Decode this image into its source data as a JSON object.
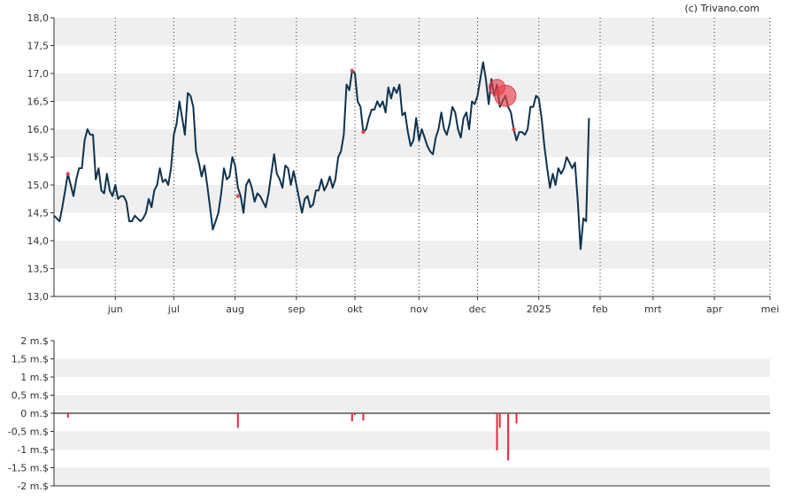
{
  "copyright": "(c) Trivano.com",
  "colors": {
    "price_line": "#0d3350",
    "band": "#efefef",
    "marker": "#e8404a",
    "volume_bar": "#e02a3a",
    "axis": "#333333",
    "grid_v": "#333333"
  },
  "chart_data": [
    {
      "type": "line",
      "name": "price",
      "ylim": [
        13.0,
        18.0
      ],
      "y_ticks": [
        13.0,
        13.5,
        14.0,
        14.5,
        15.0,
        15.5,
        16.0,
        16.5,
        17.0,
        17.5,
        18.0
      ],
      "y_tick_labels": [
        "13,0",
        "13,5",
        "14,0",
        "14,5",
        "15,0",
        "15,5",
        "16,0",
        "16,5",
        "17,0",
        "17,5",
        "18,0"
      ],
      "x_ticks": [
        {
          "label": "jun",
          "x": 22
        },
        {
          "label": "jul",
          "x": 43
        },
        {
          "label": "aug",
          "x": 65
        },
        {
          "label": "sep",
          "x": 87
        },
        {
          "label": "okt",
          "x": 108
        },
        {
          "label": "nov",
          "x": 131
        },
        {
          "label": "dec",
          "x": 152
        },
        {
          "label": "2025",
          "x": 174
        },
        {
          "label": "feb",
          "x": 196
        },
        {
          "label": "mrt",
          "x": 215
        },
        {
          "label": "apr",
          "x": 237
        },
        {
          "label": "mei",
          "x": 257
        }
      ],
      "xlim": [
        0,
        257
      ],
      "points": [
        [
          0,
          14.45
        ],
        [
          1,
          14.4
        ],
        [
          2,
          14.35
        ],
        [
          3,
          14.6
        ],
        [
          4,
          14.9
        ],
        [
          5,
          15.2
        ],
        [
          6,
          15.0
        ],
        [
          7,
          14.8
        ],
        [
          8,
          15.1
        ],
        [
          9,
          15.3
        ],
        [
          10,
          15.3
        ],
        [
          11,
          15.8
        ],
        [
          12,
          16.0
        ],
        [
          13,
          15.9
        ],
        [
          14,
          15.9
        ],
        [
          15,
          15.1
        ],
        [
          16,
          15.3
        ],
        [
          17,
          14.9
        ],
        [
          18,
          14.85
        ],
        [
          19,
          15.2
        ],
        [
          20,
          14.9
        ],
        [
          21,
          14.8
        ],
        [
          22,
          15.0
        ],
        [
          23,
          14.75
        ],
        [
          24,
          14.8
        ],
        [
          25,
          14.8
        ],
        [
          26,
          14.7
        ],
        [
          27,
          14.35
        ],
        [
          28,
          14.35
        ],
        [
          29,
          14.45
        ],
        [
          30,
          14.4
        ],
        [
          31,
          14.35
        ],
        [
          32,
          14.4
        ],
        [
          33,
          14.5
        ],
        [
          34,
          14.75
        ],
        [
          35,
          14.6
        ],
        [
          36,
          14.9
        ],
        [
          37,
          15.0
        ],
        [
          38,
          15.3
        ],
        [
          39,
          15.05
        ],
        [
          40,
          15.1
        ],
        [
          41,
          15.0
        ],
        [
          42,
          15.3
        ],
        [
          43,
          15.9
        ],
        [
          44,
          16.1
        ],
        [
          45,
          16.5
        ],
        [
          46,
          16.2
        ],
        [
          47,
          15.9
        ],
        [
          48,
          16.65
        ],
        [
          49,
          16.6
        ],
        [
          50,
          16.4
        ],
        [
          51,
          15.6
        ],
        [
          52,
          15.4
        ],
        [
          53,
          15.15
        ],
        [
          54,
          15.35
        ],
        [
          55,
          15.0
        ],
        [
          56,
          14.6
        ],
        [
          57,
          14.2
        ],
        [
          58,
          14.35
        ],
        [
          59,
          14.5
        ],
        [
          60,
          14.85
        ],
        [
          61,
          15.3
        ],
        [
          62,
          15.1
        ],
        [
          63,
          15.15
        ],
        [
          64,
          15.5
        ],
        [
          65,
          15.35
        ],
        [
          66,
          14.95
        ],
        [
          67,
          14.8
        ],
        [
          68,
          14.5
        ],
        [
          69,
          15.0
        ],
        [
          70,
          15.1
        ],
        [
          71,
          14.95
        ],
        [
          72,
          14.7
        ],
        [
          73,
          14.85
        ],
        [
          74,
          14.8
        ],
        [
          75,
          14.7
        ],
        [
          76,
          14.6
        ],
        [
          77,
          14.85
        ],
        [
          78,
          15.2
        ],
        [
          79,
          15.55
        ],
        [
          80,
          15.2
        ],
        [
          81,
          15.1
        ],
        [
          82,
          14.95
        ],
        [
          83,
          15.35
        ],
        [
          84,
          15.3
        ],
        [
          85,
          15.0
        ],
        [
          86,
          15.25
        ],
        [
          87,
          15.0
        ],
        [
          88,
          14.75
        ],
        [
          89,
          14.5
        ],
        [
          90,
          14.75
        ],
        [
          91,
          14.8
        ],
        [
          92,
          14.6
        ],
        [
          93,
          14.65
        ],
        [
          94,
          14.9
        ],
        [
          95,
          14.9
        ],
        [
          96,
          15.1
        ],
        [
          97,
          14.9
        ],
        [
          98,
          15.0
        ],
        [
          99,
          15.15
        ],
        [
          100,
          14.95
        ],
        [
          101,
          15.1
        ],
        [
          102,
          15.5
        ],
        [
          103,
          15.6
        ],
        [
          104,
          15.9
        ],
        [
          105,
          16.8
        ],
        [
          106,
          16.7
        ],
        [
          107,
          17.05
        ],
        [
          108,
          17.0
        ],
        [
          109,
          16.5
        ],
        [
          110,
          16.4
        ],
        [
          111,
          15.95
        ],
        [
          112,
          16.0
        ],
        [
          113,
          16.2
        ],
        [
          114,
          16.35
        ],
        [
          115,
          16.35
        ],
        [
          116,
          16.5
        ],
        [
          117,
          16.4
        ],
        [
          118,
          16.5
        ],
        [
          119,
          16.3
        ],
        [
          120,
          16.75
        ],
        [
          121,
          16.55
        ],
        [
          122,
          16.75
        ],
        [
          123,
          16.65
        ],
        [
          124,
          16.8
        ],
        [
          125,
          16.25
        ],
        [
          126,
          16.3
        ],
        [
          127,
          15.95
        ],
        [
          128,
          15.7
        ],
        [
          129,
          15.8
        ],
        [
          130,
          16.2
        ],
        [
          131,
          15.8
        ],
        [
          132,
          16.0
        ],
        [
          133,
          15.85
        ],
        [
          134,
          15.7
        ],
        [
          135,
          15.6
        ],
        [
          136,
          15.55
        ],
        [
          137,
          15.85
        ],
        [
          138,
          16.0
        ],
        [
          139,
          16.3
        ],
        [
          140,
          16.0
        ],
        [
          141,
          15.9
        ],
        [
          142,
          16.1
        ],
        [
          143,
          16.4
        ],
        [
          144,
          16.3
        ],
        [
          145,
          16.0
        ],
        [
          146,
          15.85
        ],
        [
          147,
          16.2
        ],
        [
          148,
          16.3
        ],
        [
          149,
          16.0
        ],
        [
          150,
          16.5
        ],
        [
          151,
          16.45
        ],
        [
          152,
          16.6
        ],
        [
          153,
          16.9
        ],
        [
          154,
          17.2
        ],
        [
          155,
          16.9
        ],
        [
          156,
          16.45
        ],
        [
          157,
          16.9
        ],
        [
          158,
          16.6
        ],
        [
          159,
          16.8
        ],
        [
          160,
          16.4
        ],
        [
          161,
          16.5
        ],
        [
          162,
          16.6
        ],
        [
          163,
          16.4
        ],
        [
          164,
          16.3
        ],
        [
          165,
          16.0
        ],
        [
          166,
          15.8
        ],
        [
          167,
          15.95
        ],
        [
          168,
          15.95
        ],
        [
          169,
          15.9
        ],
        [
          170,
          16.0
        ],
        [
          171,
          16.4
        ],
        [
          172,
          16.4
        ],
        [
          173,
          16.6
        ],
        [
          174,
          16.55
        ],
        [
          175,
          16.2
        ],
        [
          176,
          15.7
        ],
        [
          177,
          15.3
        ],
        [
          178,
          14.95
        ],
        [
          179,
          15.2
        ],
        [
          180,
          15.0
        ],
        [
          181,
          15.3
        ],
        [
          182,
          15.2
        ],
        [
          183,
          15.3
        ],
        [
          184,
          15.5
        ],
        [
          185,
          15.4
        ],
        [
          186,
          15.3
        ],
        [
          187,
          15.4
        ],
        [
          188,
          14.7
        ],
        [
          189,
          13.85
        ],
        [
          190,
          14.4
        ],
        [
          191,
          14.35
        ],
        [
          192,
          16.2
        ]
      ],
      "point_markers": [
        {
          "x": 5,
          "y": 15.2,
          "size": 1
        },
        {
          "x": 66,
          "y": 14.8,
          "size": 1
        },
        {
          "x": 107,
          "y": 17.05,
          "size": 1
        },
        {
          "x": 111,
          "y": 15.95,
          "size": 1
        },
        {
          "x": 159,
          "y": 16.75,
          "size": 3
        },
        {
          "x": 162,
          "y": 16.6,
          "size": 4
        },
        {
          "x": 165,
          "y": 16.0,
          "size": 1
        }
      ]
    },
    {
      "type": "bar",
      "name": "volume",
      "ylim": [
        -2,
        2
      ],
      "y_ticks": [
        -2,
        -1.5,
        -1,
        -0.5,
        0,
        0.5,
        1,
        1.5,
        2
      ],
      "y_tick_labels": [
        "-2 m.$",
        "-1,5 m.$",
        "-1 m.$",
        "-0,5 m.$",
        "0 m.$",
        "0,5 m.$",
        "1 m.$",
        "1,5 m.$",
        "2 m.$"
      ],
      "bars": [
        {
          "x": 5,
          "value": -0.12
        },
        {
          "x": 66,
          "value": -0.4
        },
        {
          "x": 107,
          "value": -0.22
        },
        {
          "x": 108,
          "value": -0.05
        },
        {
          "x": 111,
          "value": -0.2
        },
        {
          "x": 159,
          "value": -1.02
        },
        {
          "x": 160,
          "value": -0.4
        },
        {
          "x": 163,
          "value": -1.3
        },
        {
          "x": 166,
          "value": -0.28
        }
      ]
    }
  ]
}
